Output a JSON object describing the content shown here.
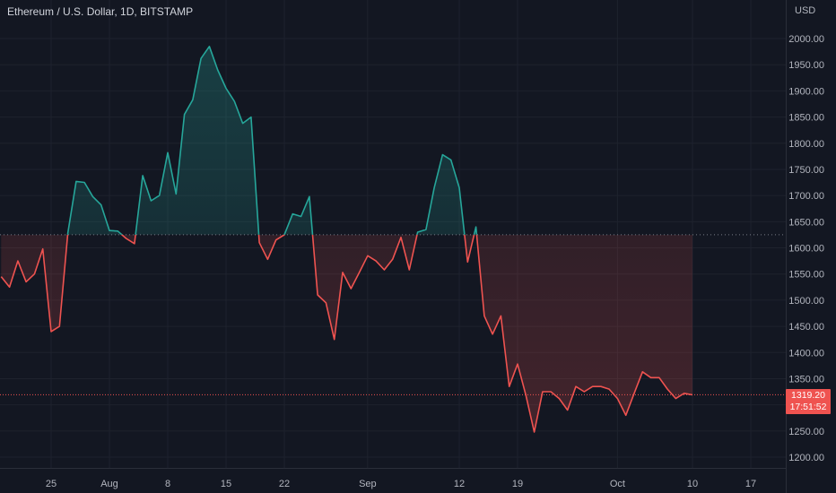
{
  "header": {
    "title": "Ethereum / U.S. Dollar, 1D, BITSTAMP",
    "currency": "USD"
  },
  "last_price": {
    "value": "1319.20",
    "countdown": "17:51:52"
  },
  "colors": {
    "background": "#131722",
    "grid": "#1e222d",
    "up": "#26a69a",
    "down": "#ef5350",
    "baseline": "#787b86",
    "axis_text": "#b2b5be"
  },
  "chart_data": {
    "type": "area",
    "style": "baseline",
    "title": "Ethereum / U.S. Dollar, 1D, BITSTAMP",
    "ylabel": "USD",
    "baseline_value": 1625,
    "current_value": 1319.2,
    "ylim": [
      1180,
      2050
    ],
    "yticks": [
      1200,
      1250,
      1300,
      1350,
      1400,
      1450,
      1500,
      1550,
      1600,
      1650,
      1700,
      1750,
      1800,
      1850,
      1900,
      1950,
      2000
    ],
    "ytick_labels": [
      "1200.00",
      "1250.00",
      "1300.00",
      "1350.00",
      "1400.00",
      "1450.00",
      "1500.00",
      "1550.00",
      "1600.00",
      "1650.00",
      "1700.00",
      "1750.00",
      "1800.00",
      "1850.00",
      "1900.00",
      "1950.00",
      "2000.00"
    ],
    "xticks": [
      {
        "day": 25,
        "label": "25"
      },
      {
        "day": 32,
        "label": "Aug"
      },
      {
        "day": 39,
        "label": "8"
      },
      {
        "day": 46,
        "label": "15"
      },
      {
        "day": 53,
        "label": "22"
      },
      {
        "day": 63,
        "label": "Sep"
      },
      {
        "day": 74,
        "label": "12"
      },
      {
        "day": 81,
        "label": "19"
      },
      {
        "day": 93,
        "label": "Oct"
      },
      {
        "day": 102,
        "label": "10"
      },
      {
        "day": 109,
        "label": "17"
      }
    ],
    "x": [
      19,
      20,
      21,
      22,
      23,
      24,
      25,
      26,
      27,
      28,
      29,
      30,
      31,
      32,
      33,
      34,
      35,
      36,
      37,
      38,
      39,
      40,
      41,
      42,
      43,
      44,
      45,
      46,
      47,
      48,
      49,
      50,
      51,
      52,
      53,
      54,
      55,
      56,
      57,
      58,
      59,
      60,
      61,
      62,
      63,
      64,
      65,
      66,
      67,
      68,
      69,
      70,
      71,
      72,
      73,
      74,
      75,
      76,
      77,
      78,
      79,
      80,
      81,
      82,
      83,
      84,
      85,
      86,
      87,
      88,
      89,
      90,
      91,
      92,
      93,
      94,
      95,
      96,
      97,
      98,
      99,
      100,
      101,
      102
    ],
    "values": [
      1545,
      1525,
      1575,
      1535,
      1550,
      1598,
      1440,
      1450,
      1628,
      1727,
      1725,
      1698,
      1682,
      1633,
      1632,
      1618,
      1608,
      1738,
      1690,
      1700,
      1782,
      1703,
      1855,
      1883,
      1962,
      1985,
      1940,
      1905,
      1880,
      1838,
      1850,
      1610,
      1578,
      1615,
      1625,
      1665,
      1660,
      1698,
      1510,
      1495,
      1425,
      1553,
      1522,
      1553,
      1585,
      1575,
      1558,
      1578,
      1620,
      1558,
      1630,
      1635,
      1715,
      1778,
      1768,
      1715,
      1573,
      1640,
      1470,
      1435,
      1470,
      1335,
      1378,
      1318,
      1248,
      1325,
      1325,
      1312,
      1290,
      1335,
      1325,
      1335,
      1335,
      1330,
      1312,
      1280,
      1322,
      1363,
      1352,
      1352,
      1330,
      1312,
      1322,
      1319
    ]
  }
}
